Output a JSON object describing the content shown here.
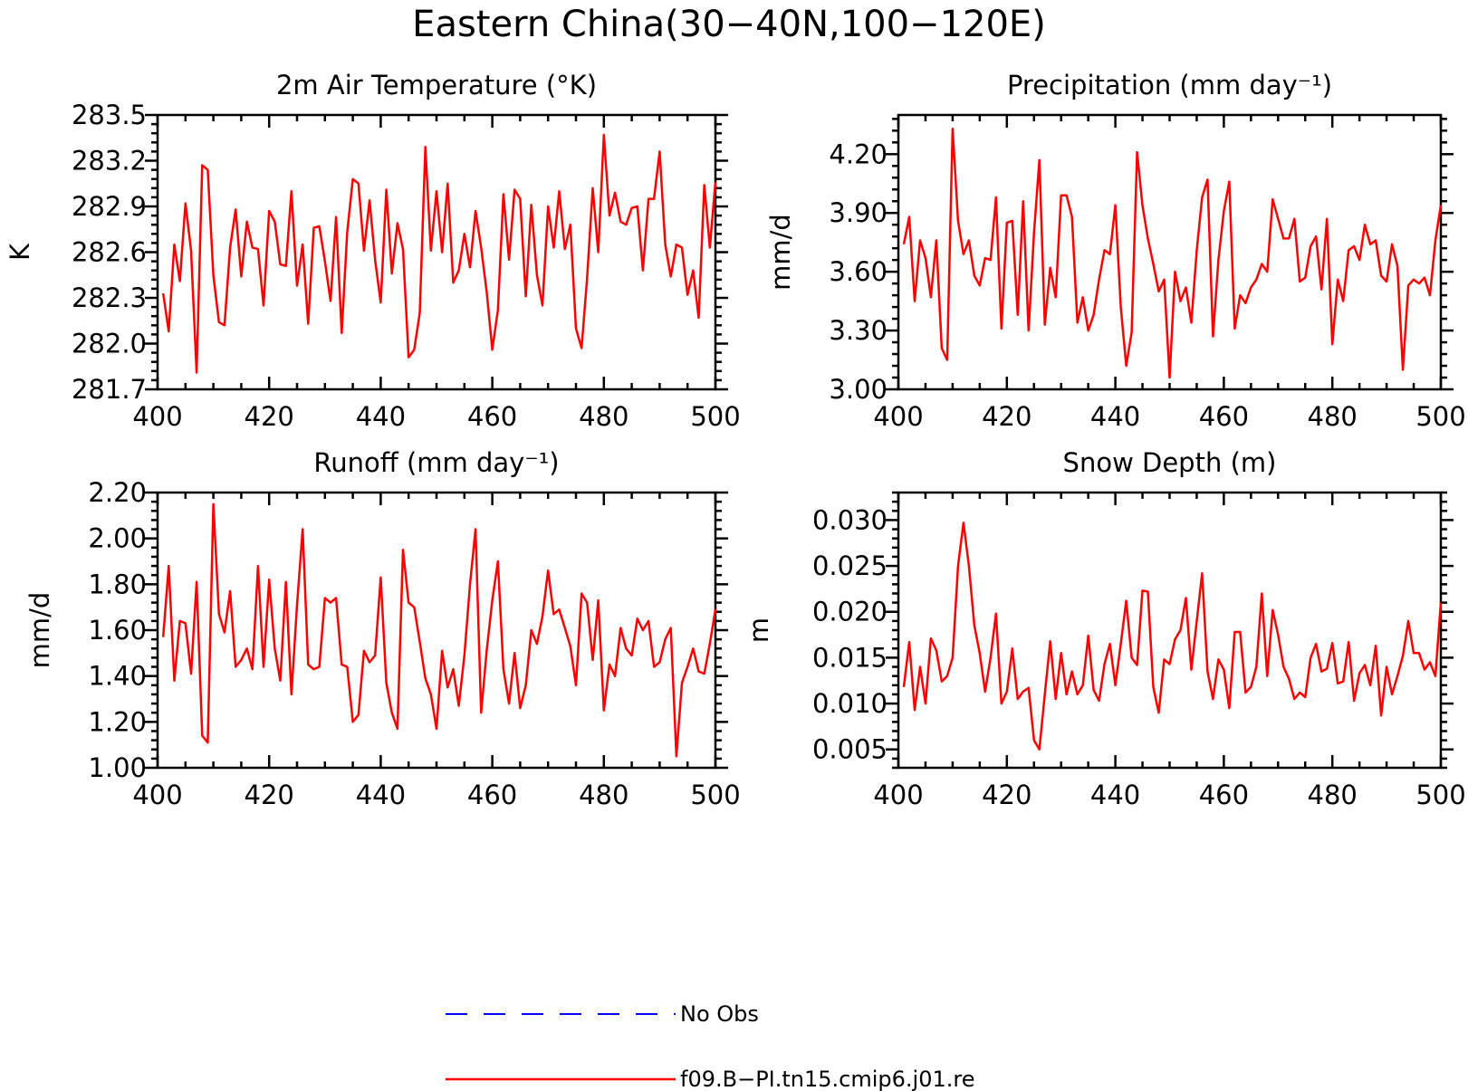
{
  "title": "Eastern China(30−40N,100−120E)",
  "legend": [
    {
      "label": "No Obs",
      "color": "#0000ff",
      "style": "dashed"
    },
    {
      "label": "f09.B−PI.tn15.cmip6.j01.re",
      "color": "#ff0000",
      "style": "solid"
    }
  ],
  "chart_data": [
    {
      "type": "line",
      "title": "2m Air Temperature (°K)",
      "ylabel": "K",
      "xlim": [
        400,
        500
      ],
      "ylim": [
        281.7,
        283.5
      ],
      "xticks": [
        "400",
        "420",
        "440",
        "460",
        "480",
        "500"
      ],
      "yticks": [
        "281.7",
        "282.0",
        "282.3",
        "282.6",
        "282.9",
        "283.2",
        "283.5"
      ],
      "series": [
        {
          "name": "f09.B−PI.tn15.cmip6.j01.re",
          "color": "#ff0000",
          "x_start": 401,
          "values": [
            282.33,
            282.08,
            282.65,
            282.41,
            282.92,
            282.61,
            281.81,
            283.17,
            283.14,
            282.45,
            282.14,
            282.12,
            282.63,
            282.88,
            282.44,
            282.8,
            282.63,
            282.62,
            282.25,
            282.87,
            282.8,
            282.52,
            282.51,
            283.0,
            282.38,
            282.65,
            282.13,
            282.76,
            282.77,
            282.54,
            282.28,
            282.83,
            282.07,
            282.73,
            283.08,
            283.05,
            282.61,
            282.94,
            282.55,
            282.27,
            283.01,
            282.46,
            282.79,
            282.62,
            281.91,
            281.96,
            282.2,
            283.29,
            282.61,
            283.0,
            282.6,
            283.05,
            282.4,
            282.48,
            282.72,
            282.5,
            282.87,
            282.63,
            282.34,
            281.96,
            282.22,
            282.98,
            282.55,
            283.01,
            282.95,
            282.31,
            282.91,
            282.45,
            282.25,
            282.9,
            282.63,
            283.0,
            282.62,
            282.78,
            282.1,
            281.97,
            282.43,
            283.02,
            282.6,
            283.37,
            282.84,
            282.99,
            282.8,
            282.78,
            282.89,
            282.9,
            282.48,
            282.95,
            282.95,
            283.26,
            282.65,
            282.44,
            282.65,
            282.63,
            282.32,
            282.48,
            282.17,
            283.04,
            282.63,
            283.06
          ]
        }
      ]
    },
    {
      "type": "line",
      "title": "Precipitation (mm day⁻¹)",
      "ylabel": "mm/d",
      "xlim": [
        400,
        500
      ],
      "ylim": [
        3.0,
        4.4
      ],
      "xticks": [
        "400",
        "420",
        "440",
        "460",
        "480",
        "500"
      ],
      "yticks": [
        "3.00",
        "3.30",
        "3.60",
        "3.90",
        "4.20"
      ],
      "series": [
        {
          "name": "f09.B−PI.tn15.cmip6.j01.re",
          "color": "#ff0000",
          "x_start": 401,
          "values": [
            3.74,
            3.88,
            3.45,
            3.76,
            3.67,
            3.47,
            3.76,
            3.21,
            3.15,
            4.33,
            3.86,
            3.69,
            3.76,
            3.58,
            3.53,
            3.67,
            3.66,
            3.98,
            3.31,
            3.85,
            3.86,
            3.38,
            3.96,
            3.3,
            3.8,
            4.17,
            3.33,
            3.62,
            3.47,
            3.99,
            3.99,
            3.88,
            3.34,
            3.47,
            3.3,
            3.38,
            3.56,
            3.71,
            3.69,
            3.94,
            3.42,
            3.12,
            3.29,
            4.21,
            3.94,
            3.77,
            3.64,
            3.5,
            3.56,
            3.06,
            3.6,
            3.45,
            3.52,
            3.34,
            3.71,
            3.98,
            4.07,
            3.27,
            3.66,
            3.91,
            4.06,
            3.31,
            3.48,
            3.44,
            3.52,
            3.56,
            3.64,
            3.6,
            3.97,
            3.87,
            3.77,
            3.77,
            3.87,
            3.55,
            3.57,
            3.73,
            3.78,
            3.51,
            3.87,
            3.23,
            3.56,
            3.45,
            3.71,
            3.73,
            3.66,
            3.84,
            3.74,
            3.76,
            3.58,
            3.55,
            3.74,
            3.63,
            3.1,
            3.53,
            3.56,
            3.54,
            3.57,
            3.48,
            3.76,
            3.94
          ]
        }
      ]
    },
    {
      "type": "line",
      "title": "Runoff (mm day⁻¹)",
      "ylabel": "mm/d",
      "xlim": [
        400,
        500
      ],
      "ylim": [
        1.0,
        2.2
      ],
      "xticks": [
        "400",
        "420",
        "440",
        "460",
        "480",
        "500"
      ],
      "yticks": [
        "1.00",
        "1.20",
        "1.40",
        "1.60",
        "1.80",
        "2.00",
        "2.20"
      ],
      "series": [
        {
          "name": "f09.B−PI.tn15.cmip6.j01.re",
          "color": "#ff0000",
          "x_start": 401,
          "values": [
            1.57,
            1.88,
            1.38,
            1.64,
            1.63,
            1.41,
            1.81,
            1.14,
            1.11,
            2.15,
            1.67,
            1.59,
            1.77,
            1.44,
            1.47,
            1.52,
            1.43,
            1.88,
            1.44,
            1.82,
            1.52,
            1.38,
            1.81,
            1.32,
            1.71,
            2.04,
            1.45,
            1.43,
            1.44,
            1.74,
            1.72,
            1.74,
            1.45,
            1.44,
            1.2,
            1.23,
            1.51,
            1.46,
            1.49,
            1.83,
            1.37,
            1.24,
            1.17,
            1.95,
            1.72,
            1.7,
            1.55,
            1.39,
            1.32,
            1.17,
            1.51,
            1.35,
            1.43,
            1.27,
            1.49,
            1.8,
            2.04,
            1.24,
            1.51,
            1.73,
            1.9,
            1.43,
            1.28,
            1.5,
            1.26,
            1.36,
            1.6,
            1.54,
            1.66,
            1.86,
            1.67,
            1.69,
            1.61,
            1.53,
            1.36,
            1.76,
            1.72,
            1.47,
            1.73,
            1.25,
            1.45,
            1.4,
            1.61,
            1.52,
            1.49,
            1.65,
            1.6,
            1.64,
            1.44,
            1.46,
            1.56,
            1.61,
            1.05,
            1.37,
            1.44,
            1.52,
            1.42,
            1.41,
            1.54,
            1.69
          ]
        }
      ]
    },
    {
      "type": "line",
      "title": "Snow Depth (m)",
      "ylabel": "m",
      "xlim": [
        400,
        500
      ],
      "ylim": [
        0.003,
        0.033
      ],
      "xticks": [
        "400",
        "420",
        "440",
        "460",
        "480",
        "500"
      ],
      "yticks": [
        "0.005",
        "0.010",
        "0.015",
        "0.020",
        "0.025",
        "0.030"
      ],
      "series": [
        {
          "name": "f09.B−PI.tn15.cmip6.j01.re",
          "color": "#ff0000",
          "x_start": 401,
          "values": [
            0.0118,
            0.0167,
            0.0093,
            0.014,
            0.01,
            0.0171,
            0.0158,
            0.0124,
            0.013,
            0.015,
            0.025,
            0.0297,
            0.025,
            0.0185,
            0.0155,
            0.0113,
            0.015,
            0.0198,
            0.01,
            0.0113,
            0.016,
            0.0105,
            0.0113,
            0.0117,
            0.006,
            0.005,
            0.011,
            0.0168,
            0.0105,
            0.0155,
            0.011,
            0.0135,
            0.011,
            0.012,
            0.0174,
            0.0115,
            0.0103,
            0.0143,
            0.0165,
            0.012,
            0.0165,
            0.0212,
            0.015,
            0.0142,
            0.0223,
            0.0222,
            0.0118,
            0.009,
            0.0148,
            0.0143,
            0.017,
            0.018,
            0.0215,
            0.0137,
            0.019,
            0.0242,
            0.0135,
            0.0105,
            0.0148,
            0.0137,
            0.0095,
            0.0178,
            0.0178,
            0.0112,
            0.0118,
            0.014,
            0.022,
            0.013,
            0.0202,
            0.0175,
            0.014,
            0.0127,
            0.0105,
            0.0112,
            0.0107,
            0.015,
            0.0165,
            0.0135,
            0.0138,
            0.0166,
            0.0122,
            0.0124,
            0.0167,
            0.0103,
            0.0133,
            0.0142,
            0.012,
            0.0163,
            0.0087,
            0.014,
            0.011,
            0.013,
            0.0152,
            0.019,
            0.0155,
            0.0155,
            0.0137,
            0.0145,
            0.013,
            0.021
          ]
        }
      ]
    }
  ]
}
